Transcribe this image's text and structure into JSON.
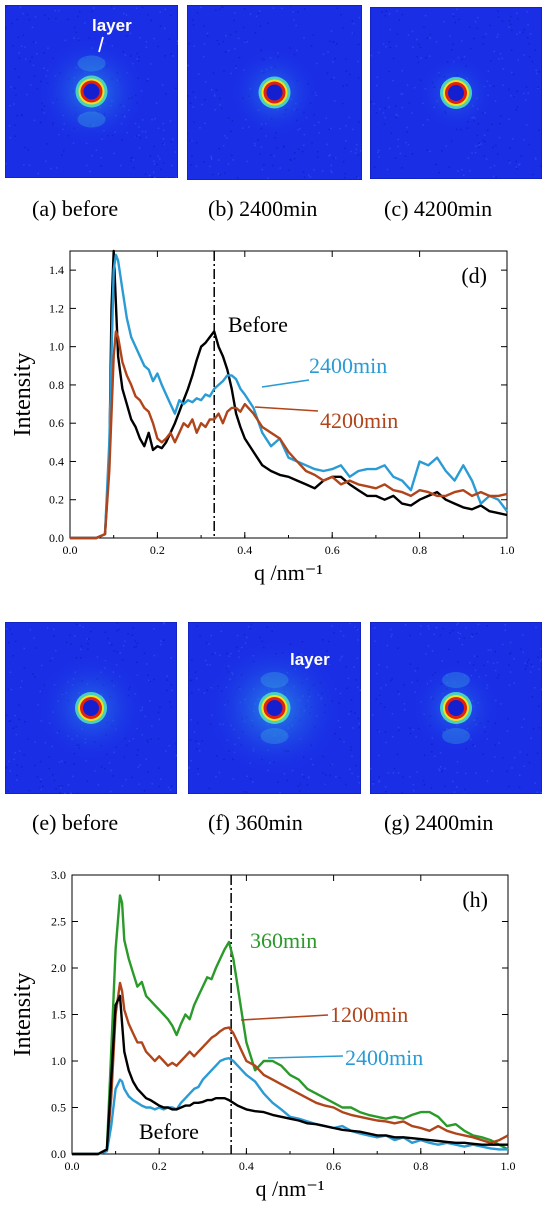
{
  "top_images": {
    "annotation": "layer",
    "captions": [
      "(a) before",
      "(b) 2400min",
      "(c) 4200min"
    ]
  },
  "bottom_images": {
    "annotation": "layer",
    "captions": [
      "(e) before",
      "(f) 360min",
      "(g) 2400min"
    ]
  },
  "colors": {
    "detector_background": "#1a2ee6",
    "black": "#000000",
    "blue": "#2a9bd4",
    "brown": "#b0441a",
    "green": "#2a9a2a"
  },
  "chart_data": [
    {
      "type": "line",
      "panel_label": "(d)",
      "xlabel": "q /nm⁻¹",
      "ylabel": "Intensity",
      "xlim": [
        0.0,
        1.0
      ],
      "ylim": [
        0.0,
        1.5
      ],
      "xticks": [
        "0.0",
        "0.2",
        "0.4",
        "0.6",
        "0.8",
        "1.0"
      ],
      "yticks": [
        "0.0",
        "0.2",
        "0.4",
        "0.6",
        "0.8",
        "1.0",
        "1.2",
        "1.4"
      ],
      "peak_line_x": 0.33,
      "series": [
        {
          "name": "Before",
          "color": "#000000",
          "x": [
            0.0,
            0.06,
            0.08,
            0.09,
            0.095,
            0.1,
            0.11,
            0.12,
            0.13,
            0.14,
            0.15,
            0.16,
            0.17,
            0.18,
            0.19,
            0.2,
            0.21,
            0.22,
            0.23,
            0.24,
            0.25,
            0.26,
            0.27,
            0.28,
            0.29,
            0.3,
            0.31,
            0.32,
            0.33,
            0.34,
            0.35,
            0.36,
            0.37,
            0.38,
            0.39,
            0.4,
            0.42,
            0.44,
            0.46,
            0.48,
            0.5,
            0.52,
            0.54,
            0.56,
            0.58,
            0.6,
            0.62,
            0.64,
            0.66,
            0.68,
            0.7,
            0.72,
            0.74,
            0.76,
            0.78,
            0.8,
            0.82,
            0.84,
            0.86,
            0.88,
            0.9,
            0.92,
            0.94,
            0.96,
            0.98,
            1.0
          ],
          "y": [
            0.0,
            0.0,
            0.02,
            0.4,
            1.2,
            1.5,
            0.95,
            0.78,
            0.7,
            0.62,
            0.58,
            0.52,
            0.48,
            0.55,
            0.46,
            0.48,
            0.47,
            0.5,
            0.55,
            0.6,
            0.66,
            0.72,
            0.78,
            0.85,
            0.93,
            1.0,
            1.02,
            1.05,
            1.08,
            1.0,
            0.95,
            0.88,
            0.78,
            0.65,
            0.58,
            0.52,
            0.45,
            0.38,
            0.35,
            0.33,
            0.32,
            0.3,
            0.28,
            0.26,
            0.3,
            0.32,
            0.32,
            0.28,
            0.25,
            0.22,
            0.22,
            0.2,
            0.22,
            0.18,
            0.17,
            0.2,
            0.22,
            0.24,
            0.2,
            0.18,
            0.16,
            0.15,
            0.17,
            0.14,
            0.13,
            0.12
          ]
        },
        {
          "name": "2400min",
          "color": "#2a9bd4",
          "x": [
            0.0,
            0.06,
            0.08,
            0.09,
            0.1,
            0.105,
            0.11,
            0.12,
            0.13,
            0.14,
            0.15,
            0.16,
            0.17,
            0.18,
            0.19,
            0.2,
            0.21,
            0.22,
            0.23,
            0.24,
            0.25,
            0.26,
            0.27,
            0.28,
            0.29,
            0.3,
            0.31,
            0.32,
            0.33,
            0.34,
            0.35,
            0.36,
            0.37,
            0.38,
            0.39,
            0.4,
            0.42,
            0.44,
            0.46,
            0.48,
            0.5,
            0.52,
            0.54,
            0.56,
            0.58,
            0.6,
            0.62,
            0.64,
            0.66,
            0.68,
            0.7,
            0.72,
            0.74,
            0.76,
            0.78,
            0.8,
            0.82,
            0.84,
            0.86,
            0.88,
            0.9,
            0.92,
            0.94,
            0.96,
            0.98,
            1.0
          ],
          "y": [
            0.0,
            0.0,
            0.02,
            0.5,
            1.4,
            1.48,
            1.45,
            1.3,
            1.15,
            1.05,
            1.0,
            0.95,
            0.9,
            0.88,
            0.82,
            0.86,
            0.8,
            0.75,
            0.7,
            0.65,
            0.72,
            0.7,
            0.72,
            0.71,
            0.73,
            0.72,
            0.75,
            0.74,
            0.78,
            0.8,
            0.82,
            0.85,
            0.85,
            0.83,
            0.78,
            0.75,
            0.68,
            0.55,
            0.48,
            0.52,
            0.42,
            0.4,
            0.38,
            0.36,
            0.35,
            0.36,
            0.38,
            0.32,
            0.35,
            0.36,
            0.36,
            0.38,
            0.32,
            0.3,
            0.25,
            0.4,
            0.38,
            0.42,
            0.35,
            0.3,
            0.38,
            0.3,
            0.18,
            0.22,
            0.2,
            0.14
          ]
        },
        {
          "name": "4200min",
          "color": "#b0441a",
          "x": [
            0.0,
            0.06,
            0.08,
            0.09,
            0.1,
            0.105,
            0.11,
            0.12,
            0.13,
            0.14,
            0.15,
            0.16,
            0.17,
            0.18,
            0.19,
            0.2,
            0.21,
            0.22,
            0.23,
            0.24,
            0.25,
            0.26,
            0.27,
            0.28,
            0.29,
            0.3,
            0.31,
            0.32,
            0.33,
            0.34,
            0.35,
            0.36,
            0.37,
            0.38,
            0.39,
            0.4,
            0.42,
            0.44,
            0.46,
            0.48,
            0.5,
            0.52,
            0.54,
            0.56,
            0.58,
            0.6,
            0.62,
            0.64,
            0.66,
            0.68,
            0.7,
            0.72,
            0.74,
            0.76,
            0.78,
            0.8,
            0.82,
            0.84,
            0.86,
            0.88,
            0.9,
            0.92,
            0.94,
            0.96,
            0.98,
            1.0
          ],
          "y": [
            0.0,
            0.0,
            0.02,
            0.35,
            0.95,
            1.08,
            1.05,
            0.92,
            0.85,
            0.8,
            0.74,
            0.72,
            0.68,
            0.66,
            0.6,
            0.52,
            0.5,
            0.52,
            0.55,
            0.5,
            0.55,
            0.6,
            0.58,
            0.62,
            0.55,
            0.6,
            0.58,
            0.62,
            0.62,
            0.65,
            0.6,
            0.66,
            0.68,
            0.68,
            0.66,
            0.7,
            0.65,
            0.58,
            0.55,
            0.52,
            0.45,
            0.4,
            0.35,
            0.33,
            0.3,
            0.32,
            0.28,
            0.3,
            0.28,
            0.27,
            0.26,
            0.28,
            0.25,
            0.24,
            0.22,
            0.25,
            0.24,
            0.22,
            0.22,
            0.24,
            0.25,
            0.22,
            0.24,
            0.22,
            0.22,
            0.23
          ]
        }
      ]
    },
    {
      "type": "line",
      "panel_label": "(h)",
      "xlabel": "q /nm⁻¹",
      "ylabel": "Intensity",
      "xlim": [
        0.0,
        1.0
      ],
      "ylim": [
        0.0,
        3.0
      ],
      "xticks": [
        "0.0",
        "0.2",
        "0.4",
        "0.6",
        "0.8",
        "1.0"
      ],
      "yticks": [
        "0.0",
        "0.5",
        "1.0",
        "1.5",
        "2.0",
        "2.5",
        "3.0"
      ],
      "peak_line_x": 0.365,
      "series": [
        {
          "name": "360min",
          "color": "#2a9a2a",
          "x": [
            0.0,
            0.06,
            0.08,
            0.09,
            0.1,
            0.11,
            0.115,
            0.12,
            0.13,
            0.14,
            0.15,
            0.16,
            0.17,
            0.18,
            0.19,
            0.2,
            0.21,
            0.22,
            0.23,
            0.24,
            0.25,
            0.26,
            0.27,
            0.28,
            0.29,
            0.3,
            0.31,
            0.32,
            0.33,
            0.34,
            0.35,
            0.36,
            0.37,
            0.38,
            0.39,
            0.4,
            0.42,
            0.44,
            0.46,
            0.48,
            0.5,
            0.52,
            0.54,
            0.56,
            0.58,
            0.6,
            0.62,
            0.64,
            0.66,
            0.68,
            0.7,
            0.72,
            0.74,
            0.76,
            0.78,
            0.8,
            0.82,
            0.84,
            0.86,
            0.88,
            0.9,
            0.92,
            0.94,
            0.96,
            0.98,
            1.0
          ],
          "y": [
            0.0,
            0.0,
            0.05,
            1.1,
            2.2,
            2.78,
            2.7,
            2.3,
            2.1,
            1.95,
            1.8,
            1.85,
            1.7,
            1.65,
            1.6,
            1.55,
            1.5,
            1.45,
            1.38,
            1.28,
            1.4,
            1.5,
            1.45,
            1.6,
            1.7,
            1.8,
            1.9,
            1.88,
            2.0,
            2.1,
            2.2,
            2.28,
            2.1,
            1.8,
            1.5,
            1.2,
            0.9,
            1.0,
            1.0,
            0.95,
            0.85,
            0.8,
            0.7,
            0.65,
            0.6,
            0.55,
            0.5,
            0.5,
            0.45,
            0.42,
            0.4,
            0.38,
            0.4,
            0.38,
            0.42,
            0.45,
            0.45,
            0.4,
            0.3,
            0.32,
            0.25,
            0.2,
            0.18,
            0.15,
            0.1,
            0.05
          ]
        },
        {
          "name": "1200min",
          "color": "#b0441a",
          "x": [
            0.0,
            0.06,
            0.08,
            0.09,
            0.1,
            0.11,
            0.115,
            0.12,
            0.13,
            0.14,
            0.15,
            0.16,
            0.17,
            0.18,
            0.19,
            0.2,
            0.21,
            0.22,
            0.23,
            0.24,
            0.25,
            0.26,
            0.27,
            0.28,
            0.29,
            0.3,
            0.31,
            0.32,
            0.33,
            0.34,
            0.35,
            0.36,
            0.37,
            0.38,
            0.39,
            0.4,
            0.42,
            0.44,
            0.46,
            0.48,
            0.5,
            0.52,
            0.54,
            0.56,
            0.58,
            0.6,
            0.62,
            0.64,
            0.66,
            0.68,
            0.7,
            0.72,
            0.74,
            0.76,
            0.78,
            0.8,
            0.82,
            0.84,
            0.86,
            0.88,
            0.9,
            0.92,
            0.94,
            0.96,
            0.98,
            1.0
          ],
          "y": [
            0.0,
            0.0,
            0.05,
            0.6,
            1.5,
            1.84,
            1.75,
            1.55,
            1.4,
            1.3,
            1.2,
            1.2,
            1.1,
            1.05,
            1.0,
            1.05,
            1.0,
            0.95,
            0.98,
            0.95,
            1.0,
            1.05,
            1.1,
            1.05,
            1.1,
            1.15,
            1.2,
            1.25,
            1.28,
            1.32,
            1.35,
            1.36,
            1.3,
            1.2,
            1.1,
            1.0,
            0.95,
            0.85,
            0.8,
            0.75,
            0.7,
            0.65,
            0.6,
            0.55,
            0.52,
            0.5,
            0.45,
            0.42,
            0.4,
            0.38,
            0.36,
            0.35,
            0.33,
            0.35,
            0.3,
            0.28,
            0.25,
            0.3,
            0.25,
            0.22,
            0.2,
            0.18,
            0.15,
            0.12,
            0.15,
            0.2
          ]
        },
        {
          "name": "2400min",
          "color": "#2a9bd4",
          "x": [
            0.0,
            0.06,
            0.08,
            0.09,
            0.1,
            0.11,
            0.115,
            0.12,
            0.13,
            0.14,
            0.15,
            0.16,
            0.17,
            0.18,
            0.19,
            0.2,
            0.21,
            0.22,
            0.23,
            0.24,
            0.25,
            0.26,
            0.27,
            0.28,
            0.29,
            0.3,
            0.31,
            0.32,
            0.33,
            0.34,
            0.35,
            0.36,
            0.37,
            0.38,
            0.39,
            0.4,
            0.42,
            0.44,
            0.46,
            0.48,
            0.5,
            0.52,
            0.54,
            0.56,
            0.58,
            0.6,
            0.62,
            0.64,
            0.66,
            0.68,
            0.7,
            0.72,
            0.74,
            0.76,
            0.78,
            0.8,
            0.82,
            0.84,
            0.86,
            0.88,
            0.9,
            0.92,
            0.94,
            0.96,
            0.98,
            1.0
          ],
          "y": [
            0.0,
            0.0,
            0.03,
            0.3,
            0.7,
            0.8,
            0.78,
            0.7,
            0.62,
            0.58,
            0.55,
            0.52,
            0.5,
            0.5,
            0.48,
            0.5,
            0.48,
            0.5,
            0.5,
            0.48,
            0.55,
            0.6,
            0.65,
            0.7,
            0.72,
            0.8,
            0.85,
            0.9,
            0.95,
            1.0,
            1.02,
            1.03,
            1.0,
            0.95,
            0.9,
            0.85,
            0.78,
            0.65,
            0.55,
            0.48,
            0.4,
            0.38,
            0.35,
            0.32,
            0.3,
            0.28,
            0.3,
            0.25,
            0.22,
            0.2,
            0.18,
            0.2,
            0.15,
            0.18,
            0.12,
            0.15,
            0.12,
            0.1,
            0.12,
            0.1,
            0.08,
            0.1,
            0.08,
            0.06,
            0.05,
            0.05
          ]
        },
        {
          "name": "Before",
          "color": "#000000",
          "x": [
            0.0,
            0.06,
            0.08,
            0.09,
            0.1,
            0.11,
            0.115,
            0.12,
            0.13,
            0.14,
            0.15,
            0.16,
            0.17,
            0.18,
            0.19,
            0.2,
            0.21,
            0.22,
            0.23,
            0.24,
            0.25,
            0.26,
            0.27,
            0.28,
            0.29,
            0.3,
            0.31,
            0.32,
            0.33,
            0.34,
            0.35,
            0.36,
            0.37,
            0.38,
            0.39,
            0.4,
            0.42,
            0.44,
            0.46,
            0.48,
            0.5,
            0.52,
            0.54,
            0.56,
            0.58,
            0.6,
            0.62,
            0.64,
            0.66,
            0.68,
            0.7,
            0.72,
            0.74,
            0.76,
            0.78,
            0.8,
            0.82,
            0.84,
            0.86,
            0.88,
            0.9,
            0.92,
            0.94,
            0.96,
            0.98,
            1.0
          ],
          "y": [
            0.0,
            0.0,
            0.05,
            0.8,
            1.6,
            1.7,
            1.4,
            1.1,
            0.9,
            0.78,
            0.7,
            0.65,
            0.6,
            0.58,
            0.55,
            0.52,
            0.5,
            0.5,
            0.48,
            0.48,
            0.5,
            0.52,
            0.52,
            0.55,
            0.55,
            0.56,
            0.58,
            0.58,
            0.6,
            0.6,
            0.6,
            0.58,
            0.55,
            0.52,
            0.5,
            0.48,
            0.46,
            0.45,
            0.42,
            0.4,
            0.38,
            0.36,
            0.33,
            0.32,
            0.3,
            0.28,
            0.26,
            0.25,
            0.24,
            0.22,
            0.2,
            0.2,
            0.18,
            0.18,
            0.17,
            0.16,
            0.15,
            0.14,
            0.13,
            0.12,
            0.12,
            0.11,
            0.1,
            0.1,
            0.1,
            0.1
          ]
        }
      ]
    }
  ]
}
